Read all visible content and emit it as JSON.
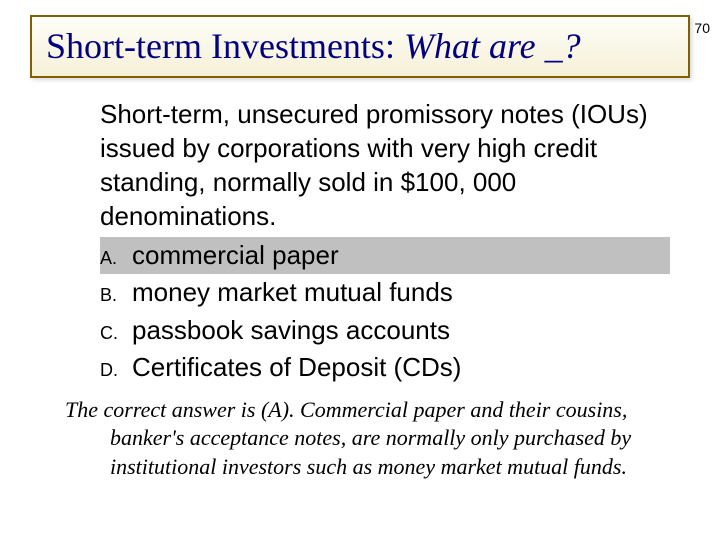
{
  "slide_number": "70",
  "title": {
    "prefix": "Short-term Investments: ",
    "italic": "What are _?",
    "color": "#000080",
    "border_color": "#806000",
    "background_gradient_top": "#fefef8",
    "background_gradient_bottom": "#f5f0d8",
    "fontsize": 36
  },
  "question": {
    "text": "Short-term, unsecured promissory notes (IOUs) issued by corporations with very high credit standing, normally sold in $100, 000 denominations.",
    "fontsize": 26,
    "font_family": "Arial"
  },
  "options": [
    {
      "letter": "A.",
      "text": "commercial paper",
      "highlighted": true
    },
    {
      "letter": "B.",
      "text": "money market mutual funds",
      "highlighted": false
    },
    {
      "letter": "C.",
      "text": "passbook savings accounts",
      "highlighted": false
    },
    {
      "letter": "D.",
      "text": "Certificates of Deposit (CDs)",
      "highlighted": false
    }
  ],
  "option_style": {
    "fontsize": 26,
    "letter_fontsize": 18,
    "highlight_color": "#c0c0c0",
    "font_family": "Arial"
  },
  "explanation": {
    "text": "The correct answer is (A). Commercial paper and their cousins, banker's acceptance notes, are normally only purchased by institutional investors such as money market mutual funds.",
    "fontsize": 22,
    "font_style": "italic",
    "font_family": "Times New Roman"
  },
  "colors": {
    "background": "#ffffff",
    "text": "#000000"
  }
}
